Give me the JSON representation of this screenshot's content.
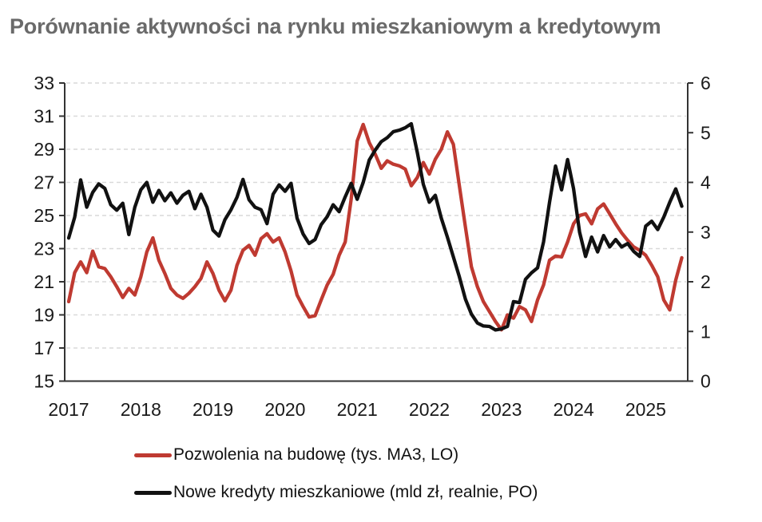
{
  "title": "Porównanie aktywności na rynku mieszkaniowym a kredytowym",
  "colors": {
    "title_gray": "#6a6a6a",
    "axis": "#333333",
    "grid": "#d9d9d9",
    "tick_label": "#1a1a1a",
    "series_red": "#bf3a31",
    "series_black": "#111111",
    "background": "#ffffff"
  },
  "legend": {
    "items": [
      {
        "label": "Pozwolenia na budowę (tys. MA3, LO)"
      },
      {
        "label": "Nowe kredyty mieszkaniowe (mld zł, realnie, PO)"
      }
    ]
  },
  "chart_data": {
    "type": "line",
    "title": "Porównanie aktywności na rynku mieszkaniowym a kredytowym",
    "frequency": "monthly",
    "x_start": "2017-01",
    "x_end": "2025-07",
    "x_tick_labels": [
      "2017",
      "2018",
      "2019",
      "2020",
      "2021",
      "2022",
      "2023",
      "2024",
      "2025"
    ],
    "left_axis": {
      "range": [
        15,
        33
      ],
      "ticks": [
        15,
        17,
        19,
        21,
        23,
        25,
        27,
        29,
        31,
        33
      ]
    },
    "right_axis": {
      "range": [
        0,
        6
      ],
      "ticks": [
        0,
        1,
        2,
        3,
        4,
        5,
        6
      ]
    },
    "grid": "horizontal-dashed",
    "legend_position": "bottom-left",
    "series": [
      {
        "name": "Pozwolenia na budowę (tys. MA3, LO)",
        "axis": "left",
        "color": "#bf3a31",
        "values": [
          19.8,
          21.55,
          22.2,
          21.55,
          22.85,
          21.9,
          21.8,
          21.3,
          20.7,
          20.05,
          20.6,
          20.2,
          21.3,
          22.8,
          23.65,
          22.3,
          21.5,
          20.6,
          20.2,
          20.0,
          20.3,
          20.7,
          21.2,
          22.2,
          21.5,
          20.5,
          19.85,
          20.5,
          22.0,
          22.9,
          23.2,
          22.6,
          23.6,
          23.9,
          23.4,
          23.65,
          22.8,
          21.65,
          20.2,
          19.5,
          18.87,
          18.95,
          19.9,
          20.8,
          21.45,
          22.6,
          23.4,
          26.0,
          29.5,
          30.5,
          29.4,
          28.7,
          27.85,
          28.3,
          28.1,
          28.0,
          27.8,
          26.8,
          27.3,
          28.2,
          27.5,
          28.4,
          29.0,
          30.05,
          29.3,
          26.8,
          24.3,
          21.9,
          20.7,
          19.8,
          19.2,
          18.6,
          18.1,
          19.0,
          18.8,
          19.5,
          19.3,
          18.6,
          19.9,
          20.8,
          22.3,
          22.55,
          22.5,
          23.4,
          24.5,
          25.0,
          25.1,
          24.5,
          25.4,
          25.7,
          25.1,
          24.5,
          23.95,
          23.5,
          23.1,
          22.9,
          22.6,
          22.0,
          21.3,
          19.9,
          19.3,
          21.1,
          22.45
        ]
      },
      {
        "name": "Nowe kredyty mieszkaniowe (mld zł, realnie, PO)",
        "axis": "right",
        "color": "#111111",
        "values": [
          2.88,
          3.3,
          4.05,
          3.5,
          3.8,
          3.97,
          3.88,
          3.55,
          3.44,
          3.58,
          2.95,
          3.5,
          3.85,
          4.0,
          3.6,
          3.84,
          3.63,
          3.79,
          3.58,
          3.74,
          3.82,
          3.47,
          3.76,
          3.5,
          3.04,
          2.92,
          3.25,
          3.45,
          3.7,
          4.06,
          3.65,
          3.5,
          3.45,
          3.17,
          3.76,
          3.95,
          3.82,
          3.98,
          3.28,
          2.96,
          2.77,
          2.85,
          3.15,
          3.31,
          3.55,
          3.41,
          3.71,
          3.98,
          3.66,
          4.0,
          4.45,
          4.65,
          4.82,
          4.9,
          5.02,
          5.05,
          5.1,
          5.18,
          4.6,
          3.96,
          3.6,
          3.74,
          3.28,
          2.9,
          2.5,
          2.1,
          1.65,
          1.35,
          1.17,
          1.11,
          1.1,
          1.03,
          1.05,
          1.1,
          1.6,
          1.58,
          2.05,
          2.18,
          2.28,
          2.8,
          3.6,
          4.33,
          3.85,
          4.46,
          3.87,
          3.0,
          2.51,
          2.9,
          2.6,
          2.93,
          2.7,
          2.85,
          2.7,
          2.77,
          2.61,
          2.51,
          3.12,
          3.22,
          3.05,
          3.3,
          3.6,
          3.87,
          3.52
        ]
      }
    ]
  }
}
